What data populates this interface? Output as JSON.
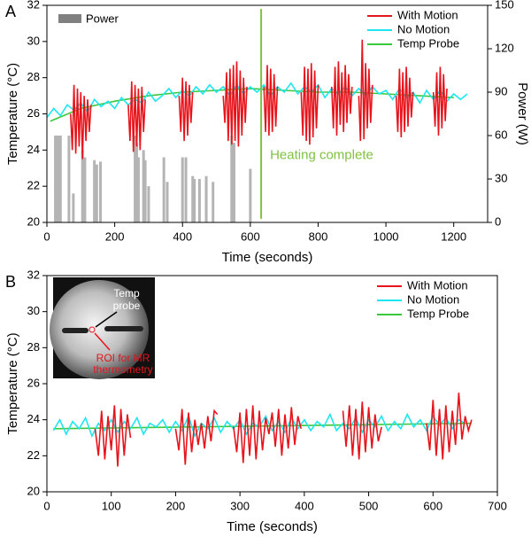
{
  "chart_data": [
    {
      "type": "line",
      "panel_label": "A",
      "xlabel": "Time (seconds)",
      "ylabel": "Temperature (°C)",
      "y2label": "Power (W)",
      "xlim": [
        0,
        1300
      ],
      "xticks": [
        0,
        200,
        400,
        600,
        800,
        1000,
        1200
      ],
      "ylim": [
        20,
        32
      ],
      "yticks": [
        20,
        22,
        24,
        26,
        28,
        30,
        32
      ],
      "y2lim": [
        0,
        150
      ],
      "y2ticks": [
        0,
        30,
        60,
        90,
        120,
        150
      ],
      "legend": "upper right",
      "series": [
        {
          "name": "With Motion",
          "color": "#e8141c",
          "x": [
            70,
            75,
            80,
            85,
            90,
            95,
            100,
            105,
            110,
            115,
            120,
            125,
            130,
            180,
            240,
            245,
            250,
            255,
            260,
            265,
            270,
            275,
            280,
            285,
            290,
            340,
            390,
            395,
            400,
            405,
            410,
            415,
            420,
            425,
            430,
            475,
            520,
            525,
            530,
            535,
            540,
            545,
            550,
            555,
            560,
            565,
            570,
            575,
            580,
            585,
            590,
            615,
            640,
            645,
            650,
            655,
            660,
            665,
            670,
            675,
            680,
            715,
            750,
            755,
            760,
            765,
            770,
            775,
            780,
            785,
            790,
            795,
            800,
            820,
            840,
            845,
            850,
            855,
            860,
            865,
            870,
            875,
            880,
            885,
            890,
            895,
            900,
            910,
            920,
            925,
            930,
            935,
            940,
            945,
            950,
            955,
            960,
            990,
            1030,
            1035,
            1040,
            1045,
            1050,
            1055,
            1060,
            1065,
            1070,
            1075,
            1080,
            1110,
            1140,
            1145,
            1150,
            1155,
            1160,
            1165,
            1170,
            1175,
            1180
          ],
          "values": [
            26,
            24,
            27.6,
            23.8,
            27.4,
            24.2,
            27.2,
            23.5,
            27,
            24.5,
            26.8,
            25,
            26.5,
            null,
            26.5,
            24.5,
            27.8,
            23.9,
            27.6,
            24.2,
            27.4,
            24,
            27.5,
            25,
            26.8,
            null,
            27,
            25,
            28,
            24.5,
            27.8,
            24.8,
            27.6,
            25.5,
            27.2,
            null,
            27,
            25.5,
            28.3,
            24.5,
            28.5,
            24.3,
            28.7,
            24.5,
            28.9,
            24.2,
            28.4,
            24.8,
            28,
            25.5,
            27.5,
            null,
            27.5,
            25,
            28.7,
            24.8,
            28.5,
            25,
            28.2,
            25.3,
            27.5,
            null,
            27.2,
            24.8,
            28.6,
            24.5,
            28.5,
            24.3,
            28.8,
            24.7,
            28.4,
            25.2,
            27.6,
            null,
            27.5,
            25.2,
            28.6,
            24.8,
            28.9,
            25.4,
            28.3,
            25,
            28.7,
            25.5,
            28.2,
            26,
            27.5,
            null,
            27,
            24.5,
            30.1,
            24.6,
            28.8,
            25.2,
            28.5,
            25.5,
            27.6,
            null,
            27,
            25,
            28.5,
            24.7,
            28.3,
            25,
            28.6,
            25.3,
            28,
            25.8,
            27.2,
            null,
            27.2,
            25.3,
            28.3,
            24.8,
            28.6,
            25.2,
            28.2,
            25.6,
            27.4
          ]
        },
        {
          "name": "No Motion",
          "color": "#1ee6f0",
          "x": [
            0,
            20,
            40,
            60,
            80,
            100,
            120,
            140,
            160,
            180,
            200,
            220,
            240,
            260,
            280,
            300,
            320,
            340,
            360,
            380,
            400,
            420,
            440,
            460,
            480,
            500,
            520,
            540,
            560,
            580,
            600,
            620,
            640,
            660,
            680,
            700,
            720,
            740,
            760,
            780,
            800,
            820,
            840,
            860,
            880,
            900,
            920,
            940,
            960,
            980,
            1000,
            1020,
            1040,
            1060,
            1080,
            1100,
            1120,
            1140,
            1160,
            1180,
            1200,
            1220,
            1240
          ],
          "values": [
            25.8,
            26.3,
            25.9,
            26.5,
            26.2,
            26.6,
            26.1,
            26.8,
            26.4,
            26.7,
            26.3,
            26.9,
            26.5,
            26.8,
            26.6,
            27.2,
            26.7,
            27.0,
            27.4,
            26.9,
            27.3,
            27.0,
            27.5,
            27.1,
            27.6,
            27.2,
            27.5,
            27.0,
            27.6,
            27.1,
            27.5,
            27.2,
            27.6,
            27.0,
            27.5,
            27.2,
            27.7,
            27.1,
            27.5,
            27.2,
            27.6,
            26.9,
            27.4,
            27.1,
            27.5,
            27.0,
            27.4,
            27.0,
            27.5,
            27.1,
            27.3,
            26.8,
            27.4,
            26.9,
            27.2,
            26.6,
            27.3,
            26.8,
            27.3,
            26.7,
            27.1,
            26.8,
            27.1
          ]
        },
        {
          "name": "Temp Probe",
          "color": "#3cc83c",
          "x": [
            10,
            100,
            200,
            300,
            400,
            500,
            600,
            700,
            800,
            900,
            1000,
            1100,
            1200
          ],
          "values": [
            25.6,
            26.3,
            26.7,
            27.0,
            27.2,
            27.3,
            27.4,
            27.3,
            27.2,
            27.2,
            27.1,
            27.0,
            26.9
          ]
        },
        {
          "name": "Power",
          "color": "#b4b4b4",
          "axis": "y2",
          "legend_color": "#808080",
          "x": [
            25,
            28,
            31,
            34,
            37,
            40,
            65,
            78,
            105,
            112,
            140,
            147,
            158,
            260,
            265,
            270,
            285,
            290,
            300,
            345,
            355,
            400,
            410,
            430,
            435,
            450,
            470,
            490,
            545,
            552,
            600
          ],
          "values": [
            60,
            60,
            60,
            60,
            60,
            60,
            60,
            20,
            50,
            45,
            43,
            40,
            42,
            60,
            55,
            45,
            50,
            43,
            25,
            45,
            28,
            45,
            45,
            32,
            30,
            30,
            32,
            28,
            60,
            55,
            37
          ]
        }
      ],
      "annotations": [
        {
          "text": "Heating complete",
          "color": "#7dc243",
          "x": 632,
          "y": [
            20.2,
            31.8
          ]
        }
      ]
    },
    {
      "type": "line",
      "panel_label": "B",
      "xlabel": "Time (seconds)",
      "ylabel": "Temperature (°C)",
      "xlim": [
        0,
        700
      ],
      "xticks": [
        0,
        100,
        200,
        300,
        400,
        500,
        600,
        700
      ],
      "ylim": [
        20,
        32
      ],
      "yticks": [
        20,
        22,
        24,
        26,
        28,
        30,
        32
      ],
      "legend": "upper right",
      "inset": {
        "probe_label": [
          "Temp",
          "probe"
        ],
        "roi_label": [
          "ROI for MR",
          "thermometry"
        ]
      },
      "series": [
        {
          "name": "With Motion",
          "color": "#e8141c",
          "x": [
            75,
            80,
            85,
            90,
            95,
            100,
            105,
            110,
            115,
            120,
            125,
            130,
            165,
            200,
            205,
            210,
            215,
            220,
            225,
            230,
            235,
            240,
            245,
            250,
            255,
            260,
            265,
            280,
            290,
            295,
            300,
            305,
            310,
            315,
            320,
            325,
            330,
            335,
            340,
            345,
            350,
            355,
            360,
            365,
            370,
            375,
            380,
            385,
            390,
            395,
            430,
            460,
            465,
            470,
            475,
            480,
            485,
            490,
            495,
            500,
            505,
            510,
            515,
            520,
            555,
            590,
            595,
            600,
            605,
            610,
            615,
            620,
            625,
            630,
            635,
            640,
            645,
            650,
            655,
            660
          ],
          "values": [
            23.5,
            22,
            24.5,
            21.8,
            24.2,
            22.3,
            24.8,
            21.4,
            24.6,
            22,
            24.3,
            23,
            null,
            23.5,
            22.3,
            24.6,
            21.5,
            24.4,
            22.2,
            24,
            22.6,
            23.8,
            22.4,
            24.2,
            22.8,
            24.5,
            24.3,
            null,
            23.6,
            22.2,
            24.4,
            21.6,
            24.6,
            22,
            24.8,
            21.8,
            24.5,
            22.3,
            24.1,
            23.2,
            24.4,
            22.5,
            24.6,
            22,
            24.3,
            22.4,
            24.7,
            22.6,
            24.2,
            23.5,
            null,
            24.5,
            22.5,
            24.8,
            22,
            24.6,
            21.8,
            25,
            22.2,
            24.7,
            22.4,
            24.3,
            22.8,
            23.6,
            null,
            23.8,
            22.3,
            25.1,
            22,
            24.6,
            21.8,
            24.8,
            22.2,
            24.5,
            22.6,
            25.5,
            22.9,
            24.2,
            23.4,
            24.0
          ]
        },
        {
          "name": "No Motion",
          "color": "#1ee6f0",
          "x": [
            10,
            20,
            30,
            40,
            50,
            60,
            70,
            80,
            90,
            100,
            110,
            120,
            130,
            140,
            150,
            160,
            170,
            180,
            190,
            200,
            210,
            220,
            230,
            240,
            250,
            260,
            270,
            280,
            290,
            300,
            310,
            320,
            330,
            340,
            350,
            360,
            370,
            380,
            390,
            400,
            410,
            420,
            430,
            440,
            450,
            460,
            470,
            480,
            490,
            500,
            510,
            520,
            530,
            540,
            550,
            560,
            570,
            580,
            590,
            600,
            610,
            620,
            630,
            640,
            650
          ],
          "values": [
            23.4,
            24.0,
            23.2,
            23.9,
            23.5,
            24.1,
            23.1,
            23.8,
            23.4,
            24.0,
            23.3,
            23.9,
            23.5,
            24.1,
            23.2,
            23.8,
            23.6,
            24.0,
            23.3,
            23.9,
            23.4,
            24.2,
            23.1,
            23.8,
            23.5,
            24.1,
            23.3,
            23.9,
            23.5,
            24.0,
            23.2,
            23.8,
            23.6,
            24.2,
            23.4,
            23.9,
            23.3,
            24.1,
            23.5,
            24.0,
            23.4,
            23.9,
            23.6,
            24.3,
            23.4,
            23.8,
            23.5,
            24.1,
            23.3,
            24.0,
            23.6,
            24.2,
            23.4,
            23.9,
            23.5,
            24.3,
            23.6,
            24.0,
            23.4,
            24.2,
            23.7,
            24.1,
            23.5,
            24.0,
            23.8
          ]
        },
        {
          "name": "Temp Probe",
          "color": "#3cc83c",
          "x": [
            10,
            660
          ],
          "values": [
            23.5,
            23.8
          ]
        }
      ]
    }
  ]
}
